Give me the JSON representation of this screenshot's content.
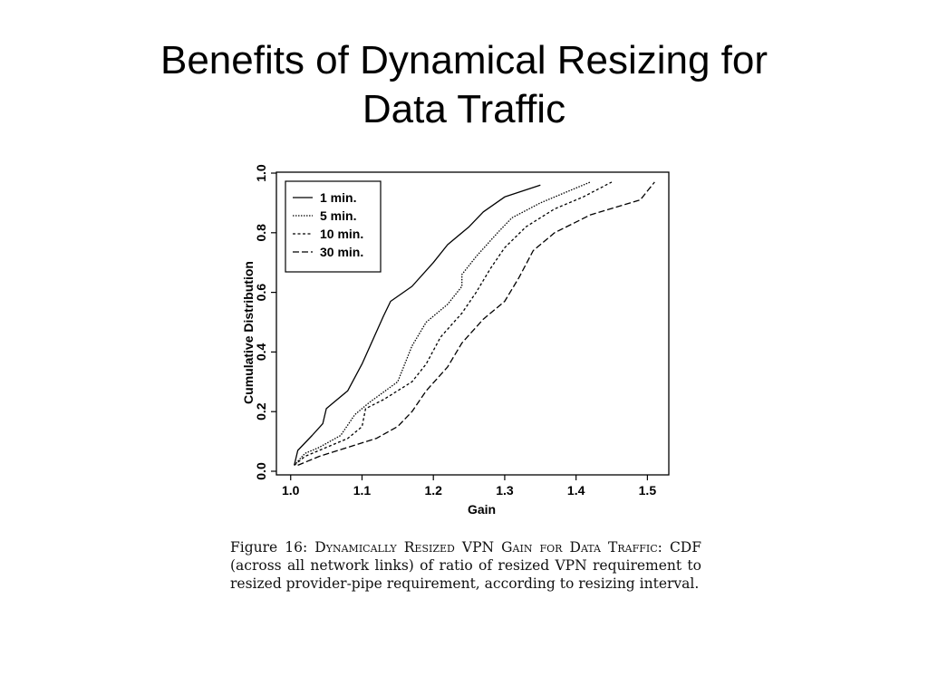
{
  "slide": {
    "title_line1": "Benefits of Dynamical Resizing for",
    "title_line2": "Data Traffic"
  },
  "chart_data": {
    "type": "line",
    "xlabel": "Gain",
    "ylabel": "Cumulative Distribution",
    "xlim": [
      0.98,
      1.53
    ],
    "ylim": [
      0.0,
      1.0
    ],
    "xticks": [
      "1.0",
      "1.1",
      "1.2",
      "1.3",
      "1.4",
      "1.5"
    ],
    "yticks": [
      "0.0",
      "0.2",
      "0.4",
      "0.6",
      "0.8",
      "1.0"
    ],
    "legend_position": "top-left",
    "grid": false,
    "series": [
      {
        "name": "1 min.",
        "dash": "solid",
        "points": [
          [
            1.005,
            0.02
          ],
          [
            1.01,
            0.07
          ],
          [
            1.03,
            0.12
          ],
          [
            1.045,
            0.16
          ],
          [
            1.05,
            0.21
          ],
          [
            1.06,
            0.23
          ],
          [
            1.08,
            0.27
          ],
          [
            1.1,
            0.36
          ],
          [
            1.13,
            0.52
          ],
          [
            1.14,
            0.57
          ],
          [
            1.17,
            0.62
          ],
          [
            1.2,
            0.7
          ],
          [
            1.22,
            0.76
          ],
          [
            1.25,
            0.82
          ],
          [
            1.27,
            0.87
          ],
          [
            1.3,
            0.92
          ],
          [
            1.35,
            0.96
          ]
        ]
      },
      {
        "name": "5 min.",
        "dash": "dotted",
        "points": [
          [
            1.005,
            0.02
          ],
          [
            1.02,
            0.06
          ],
          [
            1.04,
            0.08
          ],
          [
            1.07,
            0.12
          ],
          [
            1.09,
            0.19
          ],
          [
            1.11,
            0.23
          ],
          [
            1.15,
            0.3
          ],
          [
            1.17,
            0.42
          ],
          [
            1.19,
            0.5
          ],
          [
            1.22,
            0.56
          ],
          [
            1.24,
            0.62
          ],
          [
            1.24,
            0.66
          ],
          [
            1.26,
            0.72
          ],
          [
            1.29,
            0.8
          ],
          [
            1.31,
            0.85
          ],
          [
            1.35,
            0.9
          ],
          [
            1.38,
            0.93
          ],
          [
            1.42,
            0.97
          ]
        ]
      },
      {
        "name": "10 min.",
        "dash": "short-dash",
        "points": [
          [
            1.005,
            0.02
          ],
          [
            1.02,
            0.05
          ],
          [
            1.05,
            0.08
          ],
          [
            1.08,
            0.11
          ],
          [
            1.1,
            0.15
          ],
          [
            1.105,
            0.21
          ],
          [
            1.13,
            0.24
          ],
          [
            1.17,
            0.3
          ],
          [
            1.19,
            0.36
          ],
          [
            1.21,
            0.45
          ],
          [
            1.24,
            0.53
          ],
          [
            1.26,
            0.6
          ],
          [
            1.28,
            0.68
          ],
          [
            1.3,
            0.75
          ],
          [
            1.33,
            0.82
          ],
          [
            1.37,
            0.88
          ],
          [
            1.41,
            0.92
          ],
          [
            1.45,
            0.97
          ]
        ]
      },
      {
        "name": "30 min.",
        "dash": "long-dash",
        "points": [
          [
            1.01,
            0.02
          ],
          [
            1.04,
            0.05
          ],
          [
            1.08,
            0.08
          ],
          [
            1.12,
            0.11
          ],
          [
            1.15,
            0.15
          ],
          [
            1.17,
            0.2
          ],
          [
            1.19,
            0.27
          ],
          [
            1.22,
            0.35
          ],
          [
            1.24,
            0.43
          ],
          [
            1.27,
            0.51
          ],
          [
            1.3,
            0.57
          ],
          [
            1.32,
            0.65
          ],
          [
            1.34,
            0.74
          ],
          [
            1.37,
            0.8
          ],
          [
            1.42,
            0.86
          ],
          [
            1.49,
            0.91
          ],
          [
            1.51,
            0.97
          ]
        ]
      }
    ]
  },
  "caption": {
    "figure_label": "Figure 16:",
    "heading": "Dynamically Resized VPN Gain for Data Traffic:",
    "body": "CDF (across all network links) of ratio of resized VPN requirement to resized provider-pipe requirement, according to resizing interval."
  }
}
